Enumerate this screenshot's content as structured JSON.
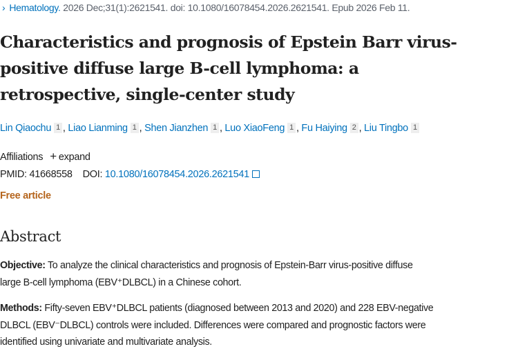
{
  "citation": {
    "journal": "Hematology.",
    "details": "2026 Dec;31(1):2621541. doi: 10.1080/16078454.2026.2621541. Epub 2026 Feb 11."
  },
  "title_lines": [
    "Characteristics and prognosis of Epstein Barr virus-",
    "positive diffuse large B-cell lymphoma: a",
    "retrospective, single-center study"
  ],
  "authors": [
    {
      "name": "Lin Qiaochu",
      "aff": "1"
    },
    {
      "name": "Liao Lianming",
      "aff": "1"
    },
    {
      "name": "Shen Jianzhen",
      "aff": "1"
    },
    {
      "name": "Luo XiaoFeng",
      "aff": "1"
    },
    {
      "name": "Fu Haiying",
      "aff": "2"
    },
    {
      "name": "Liu Tingbo",
      "aff": "1"
    }
  ],
  "affiliations": {
    "label": "Affiliations",
    "expand": "expand"
  },
  "ids": {
    "pmid_label": "PMID:",
    "pmid": "41668558",
    "doi_label": "DOI:",
    "doi": "10.1080/16078454.2026.2621541"
  },
  "free_article": "Free article",
  "abstract": {
    "heading": "Abstract",
    "objective": {
      "label": "Objective:",
      "lines": [
        " To analyze the clinical characteristics and prognosis of Epstein-Barr virus-positive diffuse",
        "large B-cell lymphoma (EBV⁺DLBCL) in a Chinese cohort."
      ]
    },
    "methods": {
      "label": "Methods:",
      "lines": [
        " Fifty-seven EBV⁺DLBCL patients (diagnosed between 2013 and 2020) and 228 EBV-negative",
        "DLBCL (EBV⁻DLBCL) controls were included. Differences were compared and prognostic factors were",
        "identified using univariate and multivariate analysis."
      ]
    }
  }
}
